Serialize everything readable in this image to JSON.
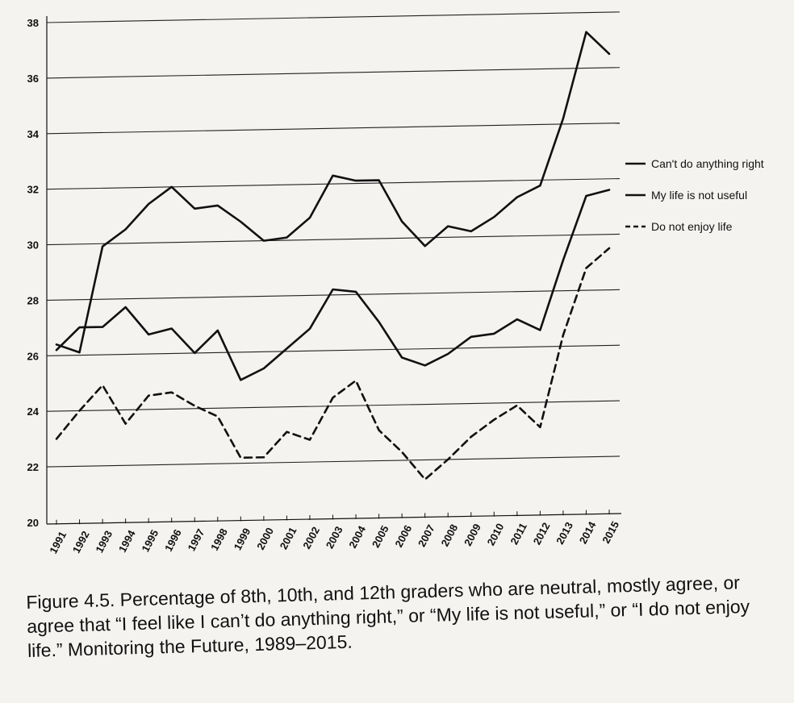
{
  "chart_data": {
    "type": "line",
    "x": [
      "1991",
      "1992",
      "1993",
      "1994",
      "1995",
      "1996",
      "1997",
      "1998",
      "1999",
      "2000",
      "2001",
      "2002",
      "2003",
      "2004",
      "2005",
      "2006",
      "2007",
      "2008",
      "2009",
      "2010",
      "2011",
      "2012",
      "2013",
      "2014",
      "2015"
    ],
    "series": [
      {
        "name": "Can't do anything right",
        "dash": "solid",
        "color": "#111111",
        "values": [
          26.4,
          26.1,
          29.9,
          30.5,
          31.4,
          32.0,
          31.2,
          31.3,
          30.7,
          30.0,
          30.1,
          30.8,
          32.3,
          32.1,
          32.1,
          30.6,
          29.7,
          30.4,
          30.2,
          30.7,
          31.4,
          31.8,
          34.2,
          37.3,
          36.5
        ]
      },
      {
        "name": "My life is not useful",
        "dash": "solid",
        "color": "#111111",
        "values": [
          26.2,
          27.0,
          27.0,
          27.7,
          26.7,
          26.9,
          26.0,
          26.8,
          25.0,
          25.4,
          26.1,
          26.8,
          28.2,
          28.1,
          27.0,
          25.7,
          25.4,
          25.8,
          26.4,
          26.5,
          27.0,
          26.6,
          29.1,
          31.4,
          31.6
        ]
      },
      {
        "name": "Do not enjoy life",
        "dash": "dashed",
        "color": "#111111",
        "values": [
          23.0,
          24.0,
          24.9,
          23.5,
          24.5,
          24.6,
          24.1,
          23.7,
          22.2,
          22.2,
          23.1,
          22.8,
          24.3,
          24.9,
          23.1,
          22.3,
          21.3,
          22.0,
          22.8,
          23.4,
          23.9,
          23.1,
          26.4,
          28.8,
          29.5
        ]
      }
    ],
    "ylim": [
      20,
      38
    ],
    "yticks": [
      "20",
      "22",
      "24",
      "26",
      "28",
      "30",
      "32",
      "34",
      "36",
      "38"
    ],
    "grid": true,
    "legend_position": "right",
    "xlabel": "",
    "ylabel": ""
  },
  "caption": "Figure 4.5. Percentage of 8th, 10th, and 12th graders who are neutral, mostly agree, or agree that “I feel like I can’t do anything right,” or “My life is not useful,” or “I do not enjoy life.” Monitoring the Future, 1989–2015."
}
